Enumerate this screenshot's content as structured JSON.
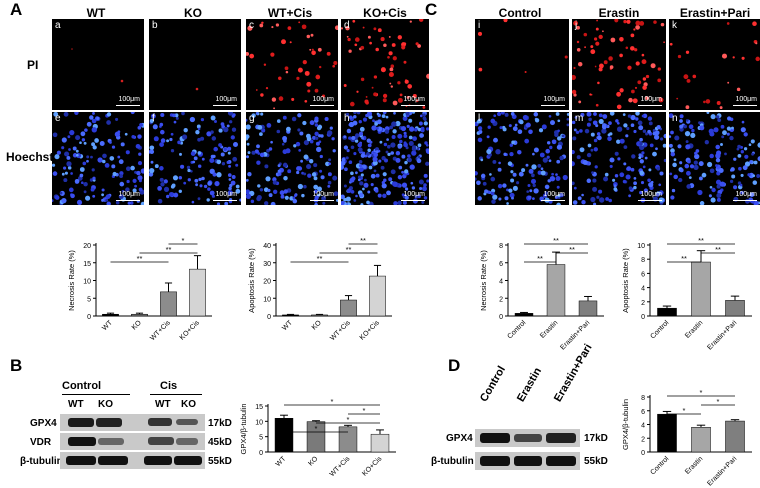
{
  "panel_letters": {
    "A": "A",
    "B": "B",
    "C": "C",
    "D": "D"
  },
  "panel_a": {
    "columns": [
      "WT",
      "KO",
      "WT+Cis",
      "KO+Cis"
    ],
    "rows": [
      "PI",
      "Hoechst"
    ],
    "pi_sublabels": [
      "a",
      "b",
      "c",
      "d"
    ],
    "hoechst_sublabels": [
      "e",
      "f",
      "g",
      "h"
    ],
    "scale_text": "100μm"
  },
  "panel_c": {
    "columns": [
      "Control",
      "Erastin",
      "Erastin+Pari"
    ],
    "pi_sublabels": [
      "i",
      "j",
      "k"
    ],
    "hoechst_sublabels": [
      "l",
      "m",
      "n"
    ],
    "scale_text": "100μm"
  },
  "panel_b": {
    "group_labels": [
      "Control",
      "Cis"
    ],
    "lane_labels": [
      "WT",
      "KO",
      "WT",
      "KO"
    ],
    "row_labels": [
      "GPX4",
      "VDR",
      "β-tubulin"
    ],
    "sizes": [
      "17kD",
      "45kD",
      "55kD"
    ]
  },
  "panel_d": {
    "lane_labels": [
      "Control",
      "Erastin",
      "Erastin+Pari"
    ],
    "row_labels": [
      "GPX4",
      "β-tubulin"
    ],
    "sizes": [
      "17kD",
      "55kD"
    ]
  },
  "chart_data": [
    {
      "type": "bar",
      "categories": [
        "WT",
        "KO",
        "WT+Cis",
        "KO+Cis"
      ],
      "values": [
        0.5,
        0.5,
        6.8,
        13.2
      ],
      "errors": [
        0.3,
        0.3,
        2.5,
        3.8
      ],
      "ylabel": "Necrosis Rate (%)",
      "ylim": [
        0,
        20
      ],
      "yticks": [
        0,
        5,
        10,
        15,
        20
      ],
      "colors": [
        "#000000",
        "#7a7a7a",
        "#8c8c8c",
        "#d4d4d4"
      ],
      "significance": [
        {
          "from": 0,
          "to": 2,
          "label": "**"
        },
        {
          "from": 1,
          "to": 3,
          "label": "**"
        },
        {
          "from": 2,
          "to": 3,
          "label": "*"
        }
      ]
    },
    {
      "type": "bar",
      "categories": [
        "WT",
        "KO",
        "WT+Cis",
        "KO+Cis"
      ],
      "values": [
        0.6,
        0.6,
        9.0,
        22.5
      ],
      "errors": [
        0.3,
        0.3,
        2.5,
        6.0
      ],
      "ylabel": "Apoptosis Rate (%)",
      "ylim": [
        0,
        40
      ],
      "yticks": [
        0,
        10,
        20,
        30,
        40
      ],
      "colors": [
        "#000000",
        "#7a7a7a",
        "#8c8c8c",
        "#d4d4d4"
      ],
      "significance": [
        {
          "from": 0,
          "to": 2,
          "label": "**"
        },
        {
          "from": 1,
          "to": 3,
          "label": "**"
        },
        {
          "from": 2,
          "to": 3,
          "label": "**"
        }
      ]
    },
    {
      "type": "bar",
      "categories": [
        "Control",
        "Erastin",
        "Erastin+Pari"
      ],
      "values": [
        0.3,
        5.8,
        1.7
      ],
      "errors": [
        0.1,
        1.4,
        0.5
      ],
      "ylabel": "Necrosis Rate (%)",
      "ylim": [
        0,
        8
      ],
      "yticks": [
        0,
        2,
        4,
        6,
        8
      ],
      "colors": [
        "#000000",
        "#a6a6a6",
        "#7f7f7f"
      ],
      "significance": [
        {
          "from": 0,
          "to": 1,
          "label": "**"
        },
        {
          "from": 1,
          "to": 2,
          "label": "**"
        },
        {
          "from": 0,
          "to": 2,
          "label": "**"
        }
      ]
    },
    {
      "type": "bar",
      "categories": [
        "Control",
        "Erastin",
        "Erastin+Pari"
      ],
      "values": [
        1.1,
        7.6,
        2.2
      ],
      "errors": [
        0.3,
        1.6,
        0.6
      ],
      "ylabel": "Apoptosis Rate (%)",
      "ylim": [
        0,
        10
      ],
      "yticks": [
        0,
        2,
        4,
        6,
        8,
        10
      ],
      "colors": [
        "#000000",
        "#a6a6a6",
        "#7f7f7f"
      ],
      "significance": [
        {
          "from": 0,
          "to": 1,
          "label": "**"
        },
        {
          "from": 1,
          "to": 2,
          "label": "**"
        },
        {
          "from": 0,
          "to": 2,
          "label": "**"
        }
      ]
    },
    {
      "type": "bar",
      "categories": [
        "WT",
        "KO",
        "WT+Cis",
        "KO+Cis"
      ],
      "values": [
        11.0,
        9.9,
        8.2,
        5.8
      ],
      "errors": [
        1.0,
        0.3,
        0.5,
        1.4
      ],
      "ylabel": "GPX4/β-tubulin",
      "ylim": [
        0,
        15
      ],
      "yticks": [
        0,
        5,
        10,
        15
      ],
      "colors": [
        "#000000",
        "#7a7a7a",
        "#8c8c8c",
        "#d4d4d4"
      ],
      "significance": [
        {
          "from": 0,
          "to": 2,
          "label": "*"
        },
        {
          "from": 1,
          "to": 3,
          "label": "*"
        },
        {
          "from": 2,
          "to": 3,
          "label": "*"
        },
        {
          "from": 0,
          "to": 3,
          "label": "*"
        }
      ]
    },
    {
      "type": "bar",
      "categories": [
        "Control",
        "Erastin",
        "Erastin+Pari"
      ],
      "values": [
        5.5,
        3.6,
        4.5
      ],
      "errors": [
        0.4,
        0.3,
        0.2
      ],
      "ylabel": "GPX4/β-tubulin",
      "ylim": [
        0,
        8
      ],
      "yticks": [
        0,
        2,
        4,
        6,
        8
      ],
      "colors": [
        "#000000",
        "#a6a6a6",
        "#7f7f7f"
      ],
      "significance": [
        {
          "from": 0,
          "to": 1,
          "label": "*"
        },
        {
          "from": 1,
          "to": 2,
          "label": "*"
        },
        {
          "from": 0,
          "to": 2,
          "label": "*"
        }
      ]
    }
  ]
}
